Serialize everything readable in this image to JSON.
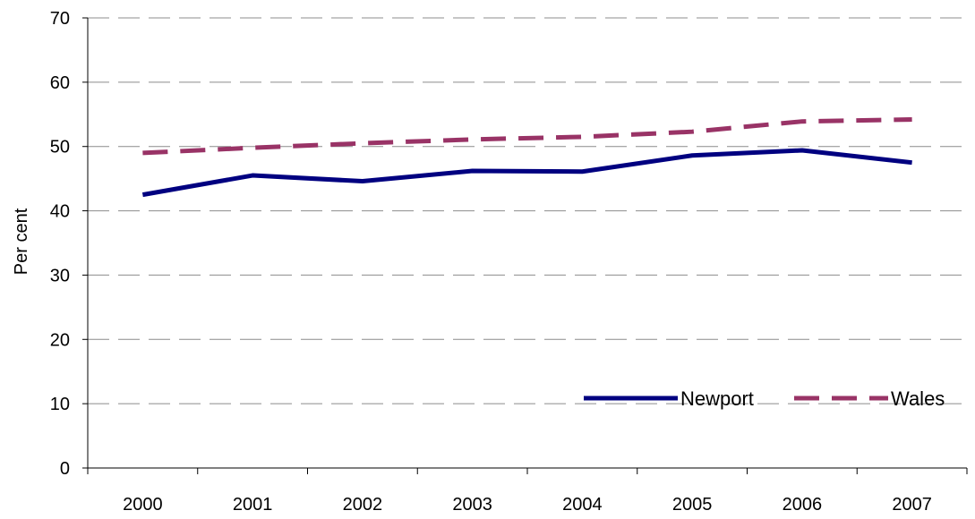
{
  "chart_data": {
    "type": "line",
    "title": "",
    "xlabel": "",
    "ylabel": "Per cent",
    "categories": [
      "2000",
      "2001",
      "2002",
      "2003",
      "2004",
      "2005",
      "2006",
      "2007"
    ],
    "ylim": [
      0,
      70
    ],
    "yticks": [
      "0",
      "10",
      "20",
      "30",
      "40",
      "50",
      "60",
      "70"
    ],
    "grid": "horizontal dashed",
    "legend_position": "bottom-right",
    "series": [
      {
        "name": "Newport",
        "values": [
          42.5,
          45.5,
          44.6,
          46.2,
          46.1,
          48.6,
          49.4,
          47.5
        ],
        "color": "#000080",
        "style": "solid"
      },
      {
        "name": "Wales",
        "values": [
          49.0,
          49.8,
          50.5,
          51.1,
          51.5,
          52.3,
          53.9,
          54.2
        ],
        "color": "#993366",
        "style": "dashed"
      }
    ]
  }
}
